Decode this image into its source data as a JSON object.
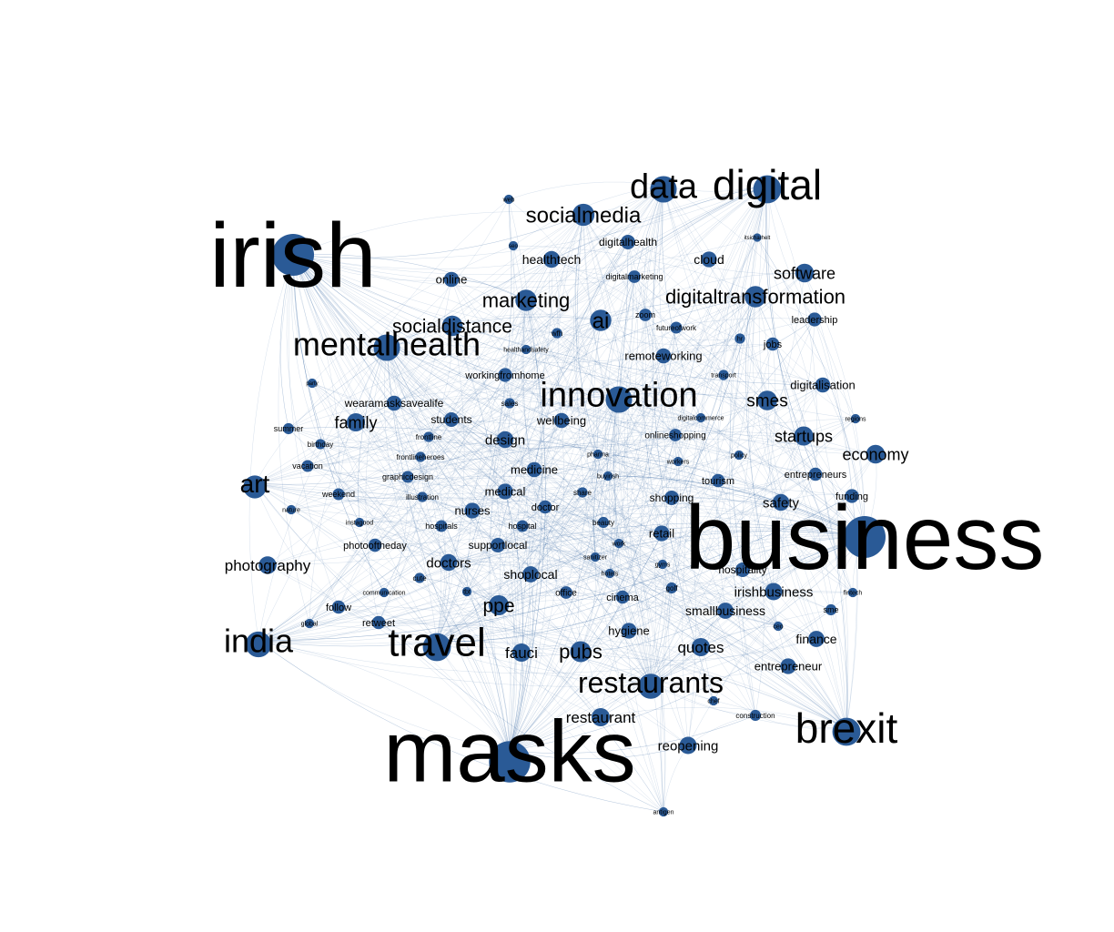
{
  "graph": {
    "nodes": [
      {
        "id": "irish",
        "label": "irish",
        "weight": 100
      },
      {
        "id": "business",
        "label": "business",
        "weight": 100
      },
      {
        "id": "masks",
        "label": "masks",
        "weight": 98
      },
      {
        "id": "digital",
        "label": "digital",
        "weight": 45
      },
      {
        "id": "data",
        "label": "data",
        "weight": 40
      },
      {
        "id": "innovation",
        "label": "innovation",
        "weight": 40
      },
      {
        "id": "brexit",
        "label": "brexit",
        "weight": 45
      },
      {
        "id": "travel",
        "label": "travel",
        "weight": 45
      },
      {
        "id": "mentalhealth",
        "label": "mentalhealth",
        "weight": 40
      },
      {
        "id": "restaurants",
        "label": "restaurants",
        "weight": 36
      },
      {
        "id": "india",
        "label": "india",
        "weight": 38
      },
      {
        "id": "art",
        "label": "art",
        "weight": 30
      },
      {
        "id": "socialmedia",
        "label": "socialmedia",
        "weight": 28
      },
      {
        "id": "digitaltransformation",
        "label": "digitaltransformation",
        "weight": 26
      },
      {
        "id": "marketing",
        "label": "marketing",
        "weight": 26
      },
      {
        "id": "socialdistance",
        "label": "socialdistance",
        "weight": 24
      },
      {
        "id": "ai",
        "label": "ai",
        "weight": 26
      },
      {
        "id": "pubs",
        "label": "pubs",
        "weight": 25
      },
      {
        "id": "ppe",
        "label": "ppe",
        "weight": 23
      },
      {
        "id": "sme",
        "label": "smes",
        "weight": 22
      },
      {
        "id": "startups",
        "label": "startups",
        "weight": 21
      },
      {
        "id": "economy",
        "label": "economy",
        "weight": 20
      },
      {
        "id": "software",
        "label": "software",
        "weight": 20
      },
      {
        "id": "family",
        "label": "family",
        "weight": 19
      },
      {
        "id": "quotes",
        "label": "quotes",
        "weight": 19
      },
      {
        "id": "fauci",
        "label": "fauci",
        "weight": 19
      },
      {
        "id": "restaurant",
        "label": "restaurant",
        "weight": 19
      },
      {
        "id": "photography",
        "label": "photography",
        "weight": 18
      },
      {
        "id": "reopening",
        "label": "reopening",
        "weight": 17
      },
      {
        "id": "safety",
        "label": "safety",
        "weight": 16
      },
      {
        "id": "irishbusiness",
        "label": "irishbusiness",
        "weight": 17
      },
      {
        "id": "design",
        "label": "design",
        "weight": 16
      },
      {
        "id": "doctors",
        "label": "doctors",
        "weight": 16
      },
      {
        "id": "healthtech",
        "label": "healthtech",
        "weight": 16
      },
      {
        "id": "finance",
        "label": "finance",
        "weight": 15
      },
      {
        "id": "smallbusiness",
        "label": "smallbusiness",
        "weight": 15
      },
      {
        "id": "shoplocal",
        "label": "shoplocal",
        "weight": 15
      },
      {
        "id": "hygiene",
        "label": "hygiene",
        "weight": 14
      },
      {
        "id": "cloud",
        "label": "cloud",
        "weight": 14
      },
      {
        "id": "nurses",
        "label": "nurses",
        "weight": 14
      },
      {
        "id": "medical",
        "label": "medical",
        "weight": 14
      },
      {
        "id": "entrepreneur",
        "label": "entrepreneur",
        "weight": 14
      },
      {
        "id": "online",
        "label": "online",
        "weight": 13
      },
      {
        "id": "retail",
        "label": "retail",
        "weight": 14
      },
      {
        "id": "wellbeing",
        "label": "wellbeing",
        "weight": 13
      },
      {
        "id": "medicine",
        "label": "medicine",
        "weight": 13
      },
      {
        "id": "remoteworking",
        "label": "remoteworking",
        "weight": 13
      },
      {
        "id": "digitalisation",
        "label": "digitalisation",
        "weight": 13
      },
      {
        "id": "wearamasksavealife",
        "label": "wearamasksavealife",
        "weight": 13
      },
      {
        "id": "students",
        "label": "students",
        "weight": 12
      },
      {
        "id": "supportlocal",
        "label": "supportlocal",
        "weight": 12
      },
      {
        "id": "shopping",
        "label": "shopping",
        "weight": 12
      },
      {
        "id": "hospitality",
        "label": "hospitality",
        "weight": 12
      },
      {
        "id": "workingfromhome",
        "label": "workingfromhome",
        "weight": 11
      },
      {
        "id": "digitalhealth",
        "label": "digitalhealth",
        "weight": 12
      },
      {
        "id": "funding",
        "label": "funding",
        "weight": 11
      },
      {
        "id": "leadership",
        "label": "leadership",
        "weight": 11
      },
      {
        "id": "jobs",
        "label": "jobs",
        "weight": 10
      },
      {
        "id": "tourism",
        "label": "tourism",
        "weight": 10
      },
      {
        "id": "entrepreneurs",
        "label": "entrepreneurs",
        "weight": 10
      },
      {
        "id": "doctor",
        "label": "doctor",
        "weight": 10
      },
      {
        "id": "cinema",
        "label": "cinema",
        "weight": 10
      },
      {
        "id": "photooftheday",
        "label": "photooftheday",
        "weight": 10
      },
      {
        "id": "follow",
        "label": "follow",
        "weight": 10
      },
      {
        "id": "retweet",
        "label": "retweet",
        "weight": 10
      },
      {
        "id": "office",
        "label": "office",
        "weight": 9
      },
      {
        "id": "onlineshopping",
        "label": "onlineshopping",
        "weight": 9
      },
      {
        "id": "digitalmarketing",
        "label": "digitalmarketing",
        "weight": 9
      },
      {
        "id": "zoom",
        "label": "zoom",
        "weight": 9
      },
      {
        "id": "futureofwork",
        "label": "futureofwork",
        "weight": 8
      },
      {
        "id": "graphicdesign",
        "label": "graphicdesign",
        "weight": 8
      },
      {
        "id": "weekend",
        "label": "weekend",
        "weight": 8
      },
      {
        "id": "vacation",
        "label": "vacation",
        "weight": 8
      },
      {
        "id": "hospitals",
        "label": "hospitals",
        "weight": 8
      },
      {
        "id": "hospital",
        "label": "hospital",
        "weight": 8
      },
      {
        "id": "beauty",
        "label": "beauty",
        "weight": 7
      },
      {
        "id": "golf",
        "label": "golf",
        "weight": 7
      },
      {
        "id": "construction",
        "label": "construction",
        "weight": 7
      },
      {
        "id": "sme2",
        "label": "sme",
        "weight": 7
      },
      {
        "id": "summer",
        "label": "summer",
        "weight": 7
      },
      {
        "id": "birthday",
        "label": "birthday",
        "weight": 6
      },
      {
        "id": "illustration",
        "label": "illustration",
        "weight": 6
      },
      {
        "id": "frontline",
        "label": "frontline",
        "weight": 6
      },
      {
        "id": "frontlineheroes",
        "label": "frontlineheroes",
        "weight": 6
      },
      {
        "id": "sales",
        "label": "sales",
        "weight": 6
      },
      {
        "id": "wfh",
        "label": "wfh",
        "weight": 6
      },
      {
        "id": "healthandsafety",
        "label": "healthandsafety",
        "weight": 5
      },
      {
        "id": "transport",
        "label": "transport",
        "weight": 6
      },
      {
        "id": "hr",
        "label": "hr",
        "weight": 6
      },
      {
        "id": "digitalcommerce",
        "label": "digitalcommerce",
        "weight": 5
      },
      {
        "id": "pharma",
        "label": "pharma",
        "weight": 5
      },
      {
        "id": "buyirish",
        "label": "buyirish",
        "weight": 5
      },
      {
        "id": "share",
        "label": "share",
        "weight": 6
      },
      {
        "id": "workers",
        "label": "workers",
        "weight": 5
      },
      {
        "id": "policy",
        "label": "policy",
        "weight": 5
      },
      {
        "id": "regions",
        "label": "regions",
        "weight": 5
      },
      {
        "id": "instagood",
        "label": "instagood",
        "weight": 5
      },
      {
        "id": "nature",
        "label": "nature",
        "weight": 5
      },
      {
        "id": "cute",
        "label": "cute",
        "weight": 6
      },
      {
        "id": "communication",
        "label": "communication",
        "weight": 5
      },
      {
        "id": "global",
        "label": "global",
        "weight": 5
      },
      {
        "id": "tbt",
        "label": "tbt",
        "weight": 5
      },
      {
        "id": "work",
        "label": "work",
        "weight": 5
      },
      {
        "id": "sanitizer",
        "label": "sanitizer",
        "weight": 5
      },
      {
        "id": "hotels",
        "label": "hotels",
        "weight": 5
      },
      {
        "id": "gyms",
        "label": "gyms",
        "weight": 5
      },
      {
        "id": "fintech",
        "label": "fintech",
        "weight": 5
      },
      {
        "id": "ceo",
        "label": "ceo",
        "weight": 5
      },
      {
        "id": "chef",
        "label": "chef",
        "weight": 5
      },
      {
        "id": "antigen",
        "label": "antigen",
        "weight": 5
      },
      {
        "id": "party",
        "label": "party",
        "weight": 5
      },
      {
        "id": "web",
        "label": "web",
        "weight": 5
      },
      {
        "id": "seo",
        "label": "seo",
        "weight": 5
      },
      {
        "id": "itsicharhelt",
        "label": "itsicharhelt",
        "weight": 4
      }
    ]
  }
}
